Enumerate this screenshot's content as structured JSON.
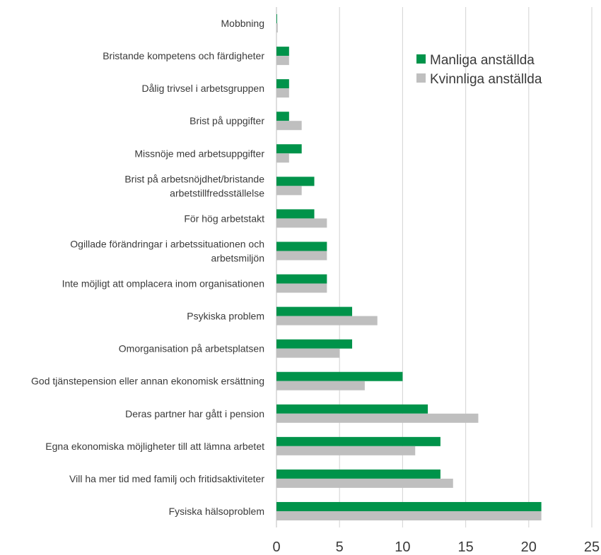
{
  "chart_data": {
    "type": "bar",
    "orientation": "horizontal",
    "categories": [
      "Mobbning",
      "Bristande kompetens och färdigheter",
      "Dålig trivsel i arbetsgruppen",
      "Brist på uppgifter",
      "Missnöje med arbetsuppgifter",
      "Brist på arbetsnöjdhet/bristande arbetstillfredsställelse",
      "För hög arbetstakt",
      "Ogillade förändringar i arbetssituationen och arbetsmiljön",
      "Inte möjligt att omplacera inom organisationen",
      "Psykiska problem",
      "Omorganisation på arbetsplatsen",
      "God tjänstepension eller annan ekonomisk ersättning",
      "Deras partner har gått i pension",
      "Egna ekonomiska möjligheter till att lämna arbetet",
      "Vill ha mer tid med familj och fritidsaktiviteter",
      "Fysiska hälsoproblem"
    ],
    "series": [
      {
        "name": "Manliga anställda",
        "color": "#00934a",
        "values": [
          0.05,
          1,
          1,
          1,
          2,
          3,
          3,
          4,
          4,
          6,
          6,
          10,
          12,
          13,
          13,
          21
        ]
      },
      {
        "name": "Kvinnliga anställda",
        "color": "#bfbfbf",
        "values": [
          0.1,
          1,
          1,
          2,
          1,
          2,
          4,
          4,
          4,
          8,
          5,
          7,
          16,
          11,
          14,
          21
        ]
      }
    ],
    "xlim": [
      0,
      25
    ],
    "xticks": [
      "0",
      "5",
      "10",
      "15",
      "20",
      "25"
    ],
    "grid": true,
    "legend_position": "top-right",
    "title": "",
    "xlabel": "",
    "ylabel": ""
  }
}
